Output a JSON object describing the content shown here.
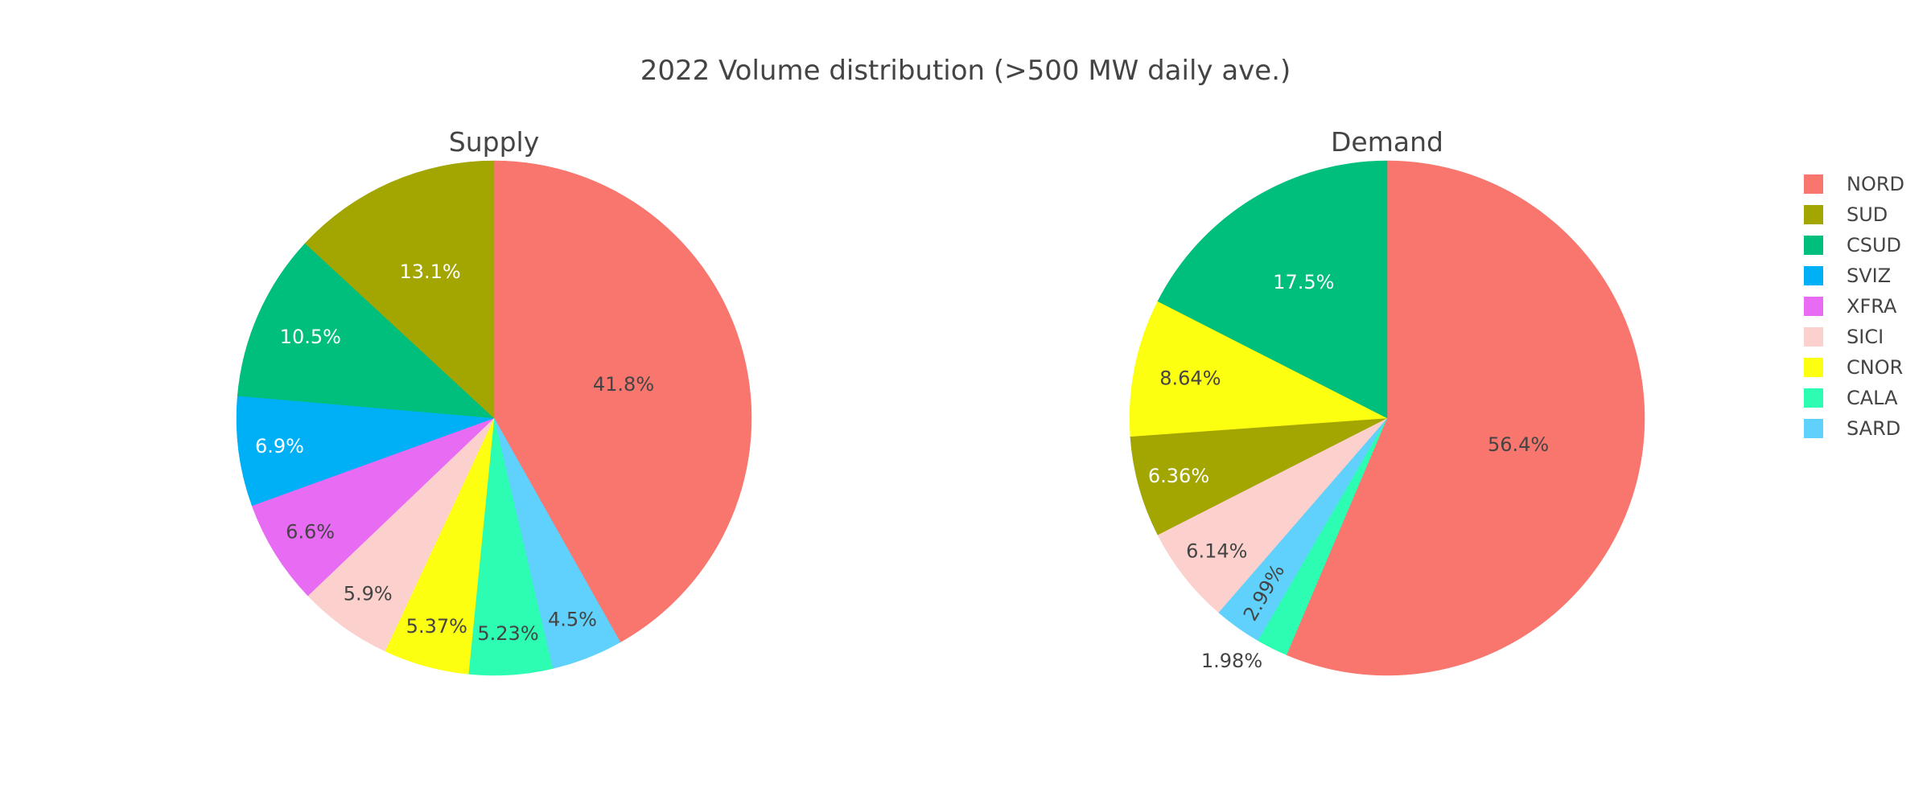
{
  "chart_data": {
    "type": "pie",
    "title": "2022 Volume distribution (>500 MW daily ave.)",
    "legend_placement": "top-right",
    "legend": [
      {
        "label": "NORD",
        "color": "#F8766D"
      },
      {
        "label": "SUD",
        "color": "#A3A500"
      },
      {
        "label": "CSUD",
        "color": "#00BF7D"
      },
      {
        "label": "SVIZ",
        "color": "#00B0F6"
      },
      {
        "label": "XFRA",
        "color": "#E76BF3"
      },
      {
        "label": "SICI",
        "color": "#FCD0CC"
      },
      {
        "label": "CNOR",
        "color": "#FCFF10"
      },
      {
        "label": "CALA",
        "color": "#2CFDB2"
      },
      {
        "label": "SARD",
        "color": "#5FD1FC"
      }
    ],
    "pies": [
      {
        "name": "Supply",
        "slices": [
          {
            "label": "NORD",
            "percent": 41.8,
            "text": "41.8%"
          },
          {
            "label": "SARD",
            "percent": 4.5,
            "text": "4.5%"
          },
          {
            "label": "CALA",
            "percent": 5.23,
            "text": "5.23%"
          },
          {
            "label": "CNOR",
            "percent": 5.37,
            "text": "5.37%"
          },
          {
            "label": "SICI",
            "percent": 5.9,
            "text": "5.9%"
          },
          {
            "label": "XFRA",
            "percent": 6.6,
            "text": "6.6%"
          },
          {
            "label": "SVIZ",
            "percent": 6.9,
            "text": "6.9%"
          },
          {
            "label": "CSUD",
            "percent": 10.5,
            "text": "10.5%"
          },
          {
            "label": "SUD",
            "percent": 13.1,
            "text": "13.1%"
          }
        ]
      },
      {
        "name": "Demand",
        "slices": [
          {
            "label": "NORD",
            "percent": 56.4,
            "text": "56.4%"
          },
          {
            "label": "CALA",
            "percent": 1.98,
            "text": "1.98%"
          },
          {
            "label": "SARD",
            "percent": 2.99,
            "text": "2.99%"
          },
          {
            "label": "SICI",
            "percent": 6.14,
            "text": "6.14%"
          },
          {
            "label": "SUD",
            "percent": 6.36,
            "text": "6.36%"
          },
          {
            "label": "CNOR",
            "percent": 8.64,
            "text": "8.64%"
          },
          {
            "label": "CSUD",
            "percent": 17.5,
            "text": "17.5%"
          }
        ]
      }
    ]
  }
}
